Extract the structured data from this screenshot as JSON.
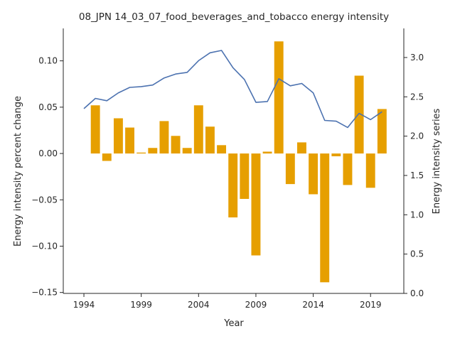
{
  "chart_data": {
    "type": "bar+line",
    "title": "08_JPN 14_03_07_food_beverages_and_tobacco energy intensity",
    "xlabel": "Year",
    "ylabel_left": "Energy intensity percent change",
    "ylabel_right": "Energy intensity series",
    "x_ticks": [
      "1994",
      "1999",
      "2004",
      "2009",
      "2014",
      "2019"
    ],
    "y_left_ticks": [
      "−0.15",
      "−0.10",
      "−0.05",
      "0.00",
      "0.05",
      "0.10"
    ],
    "y_right_ticks": [
      "0.0",
      "0.5",
      "1.0",
      "1.5",
      "2.0",
      "2.5",
      "3.0"
    ],
    "xlim": [
      1992.2,
      2021.9
    ],
    "ylim_left": [
      -0.151,
      0.135
    ],
    "ylim_right": [
      0.0,
      3.37
    ],
    "bar_color": "#e69f00",
    "line_color": "#4c72b0",
    "bars": {
      "name": "Energy intensity percent change",
      "x": [
        1995,
        1996,
        1997,
        1998,
        1999,
        2000,
        2001,
        2002,
        2003,
        2004,
        2005,
        2006,
        2007,
        2008,
        2009,
        2010,
        2011,
        2012,
        2013,
        2014,
        2015,
        2016,
        2017,
        2018,
        2019,
        2020
      ],
      "values": [
        0.052,
        -0.008,
        0.038,
        0.028,
        0.001,
        0.006,
        0.035,
        0.019,
        0.006,
        0.052,
        0.029,
        0.009,
        -0.069,
        -0.049,
        -0.11,
        0.002,
        0.121,
        -0.033,
        0.012,
        -0.044,
        -0.139,
        -0.003,
        -0.034,
        0.084,
        -0.037,
        0.048
      ]
    },
    "line": {
      "name": "Energy intensity series",
      "x": [
        1994,
        1995,
        1996,
        1997,
        1998,
        1999,
        2000,
        2001,
        2002,
        2003,
        2004,
        2005,
        2006,
        2007,
        2008,
        2009,
        2010,
        2011,
        2012,
        2013,
        2014,
        2015,
        2016,
        2017,
        2018,
        2019,
        2020
      ],
      "values": [
        2.35,
        2.48,
        2.45,
        2.55,
        2.62,
        2.63,
        2.65,
        2.74,
        2.79,
        2.81,
        2.96,
        3.06,
        3.09,
        2.87,
        2.72,
        2.43,
        2.44,
        2.73,
        2.64,
        2.67,
        2.55,
        2.2,
        2.19,
        2.11,
        2.29,
        2.21,
        2.31
      ]
    }
  }
}
